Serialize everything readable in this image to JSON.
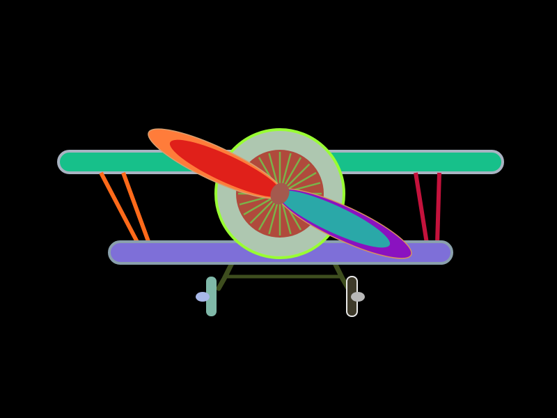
{
  "scene": {
    "subject": "biplane-front-view",
    "background": "#000000",
    "colors": {
      "upper_wing": "#17c08a",
      "upper_wing_border": "#a9b3c2",
      "lower_wing": "#7e6fd8",
      "lower_wing_border": "#8aa0ad",
      "left_strut": "#ff6a1a",
      "right_strut": "#c4123c",
      "cowling_face": "#aec7b0",
      "cowling_ring": "#99ff33",
      "engine_disc": "#b04a3c",
      "engine_spokes": "#7ab34a",
      "hub": "#a45a4e",
      "blade_upper_outer": "#ff7c3a",
      "blade_upper_inner": "#e0201a",
      "blade_lower_outer": "#8a12c0",
      "blade_lower_inner": "#2aa8a8",
      "landing_gear": "#3e4e1e",
      "left_tire": "#7fb8a8",
      "left_axle": "#a8b8e8",
      "right_tire": "#3e3a2a",
      "right_tire_border": "#e8e8e8",
      "right_axle": "#b8b8b8"
    },
    "icons": [
      "propeller-icon",
      "engine-icon",
      "wheel-icon"
    ]
  }
}
